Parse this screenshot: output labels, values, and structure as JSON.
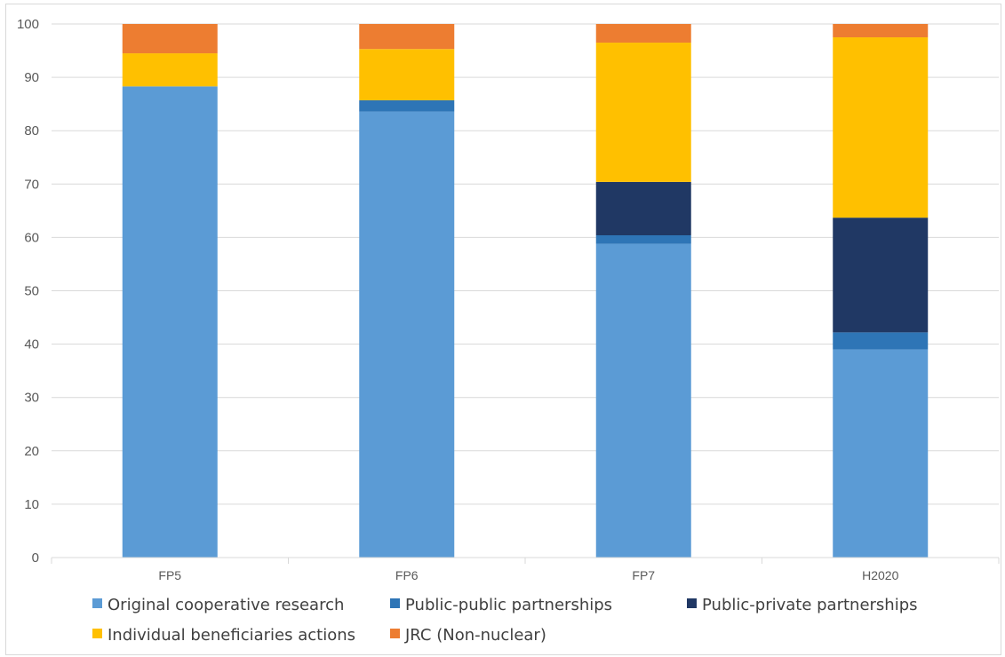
{
  "chart_data": {
    "type": "bar",
    "stacked": true,
    "title": "",
    "xlabel": "",
    "ylabel": "",
    "ylim": [
      0,
      100
    ],
    "yticks": [
      0,
      10,
      20,
      30,
      40,
      50,
      60,
      70,
      80,
      90,
      100
    ],
    "grid": true,
    "legend_position": "bottom",
    "categories": [
      "FP5",
      "FP6",
      "FP7",
      "H2020"
    ],
    "series": [
      {
        "name": "Original cooperative research",
        "color": "#5b9bd5",
        "values": [
          88.3,
          83.6,
          58.8,
          39.0
        ]
      },
      {
        "name": "Public-public partnerships",
        "color": "#2e75b6",
        "values": [
          0.0,
          2.1,
          1.6,
          3.2
        ]
      },
      {
        "name": "Public-private partnerships",
        "color": "#203864",
        "values": [
          0.0,
          0.0,
          10.0,
          21.5
        ]
      },
      {
        "name": "Individual beneficiaries actions",
        "color": "#ffc000",
        "values": [
          6.2,
          9.6,
          26.1,
          33.8
        ]
      },
      {
        "name": "JRC (Non-nuclear)",
        "color": "#ed7d31",
        "values": [
          5.5,
          4.7,
          3.5,
          2.5
        ]
      }
    ]
  }
}
